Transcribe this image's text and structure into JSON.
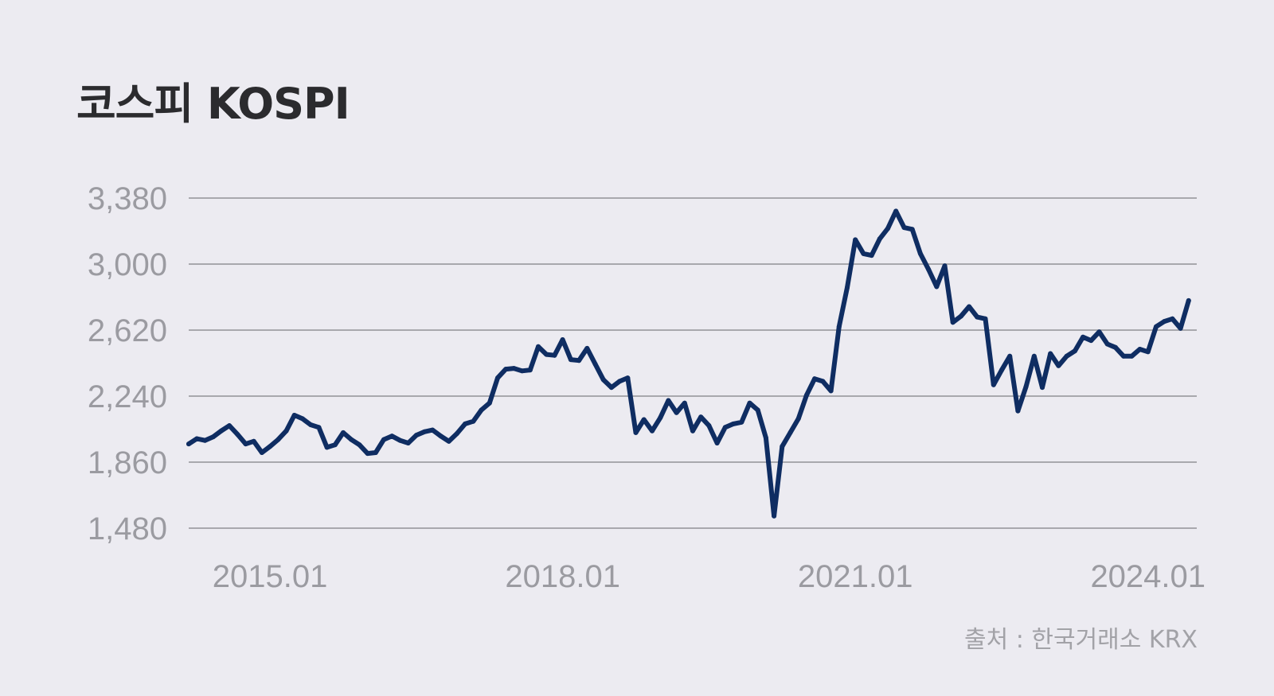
{
  "title": "코스피 KOSPI",
  "source": "출처 : 한국거래소 KRX",
  "colors": {
    "background": "#ecebf1",
    "line": "#0f2d62",
    "grid": "#a8a8ad",
    "tick_text": "#9b9ba1",
    "title_text": "#2b2b2e"
  },
  "chart_data": {
    "type": "line",
    "title": "코스피 KOSPI",
    "xlabel": "",
    "ylabel": "",
    "grid": true,
    "legend": "none",
    "x_ticks": [
      "2015.01",
      "2018.01",
      "2021.01",
      "2024.01"
    ],
    "y_ticks": [
      1480,
      1860,
      2240,
      2620,
      3000,
      3380
    ],
    "y_tick_labels": [
      "1,480",
      "1,860",
      "2,240",
      "2,620",
      "3,000",
      "3,380"
    ],
    "xlim": [
      "2014-03",
      "2024-07"
    ],
    "ylim": [
      1480,
      3380
    ],
    "series": [
      {
        "name": "",
        "x": [
          "2014-03",
          "2014-04",
          "2014-05",
          "2014-06",
          "2014-07",
          "2014-08",
          "2014-09",
          "2014-10",
          "2014-11",
          "2014-12",
          "2015-01",
          "2015-02",
          "2015-03",
          "2015-04",
          "2015-05",
          "2015-06",
          "2015-07",
          "2015-08",
          "2015-09",
          "2015-10",
          "2015-11",
          "2015-12",
          "2016-01",
          "2016-02",
          "2016-03",
          "2016-04",
          "2016-05",
          "2016-06",
          "2016-07",
          "2016-08",
          "2016-09",
          "2016-10",
          "2016-11",
          "2016-12",
          "2017-01",
          "2017-02",
          "2017-03",
          "2017-04",
          "2017-05",
          "2017-06",
          "2017-07",
          "2017-08",
          "2017-09",
          "2017-10",
          "2017-11",
          "2017-12",
          "2018-01",
          "2018-02",
          "2018-03",
          "2018-04",
          "2018-05",
          "2018-06",
          "2018-07",
          "2018-08",
          "2018-09",
          "2018-10",
          "2018-11",
          "2018-12",
          "2019-01",
          "2019-02",
          "2019-03",
          "2019-04",
          "2019-05",
          "2019-06",
          "2019-07",
          "2019-08",
          "2019-09",
          "2019-10",
          "2019-11",
          "2019-12",
          "2020-01",
          "2020-02",
          "2020-03",
          "2020-04",
          "2020-05",
          "2020-06",
          "2020-07",
          "2020-08",
          "2020-09",
          "2020-10",
          "2020-11",
          "2020-12",
          "2021-01",
          "2021-02",
          "2021-03",
          "2021-04",
          "2021-05",
          "2021-06",
          "2021-07",
          "2021-08",
          "2021-09",
          "2021-10",
          "2021-11",
          "2021-12",
          "2022-01",
          "2022-02",
          "2022-03",
          "2022-04",
          "2022-05",
          "2022-06",
          "2022-07",
          "2022-08",
          "2022-09",
          "2022-10",
          "2022-11",
          "2022-12",
          "2023-01",
          "2023-02",
          "2023-03",
          "2023-04",
          "2023-05",
          "2023-06",
          "2023-07",
          "2023-08",
          "2023-09",
          "2023-10",
          "2023-11",
          "2023-12",
          "2024-01",
          "2024-02",
          "2024-03",
          "2024-04",
          "2024-05",
          "2024-06"
        ],
        "values": [
          1965,
          1995,
          1985,
          2005,
          2040,
          2070,
          2020,
          1965,
          1980,
          1915,
          1950,
          1990,
          2040,
          2130,
          2110,
          2075,
          2060,
          1945,
          1960,
          2030,
          1990,
          1960,
          1910,
          1915,
          1990,
          2010,
          1985,
          1970,
          2015,
          2035,
          2045,
          2010,
          1980,
          2025,
          2080,
          2095,
          2160,
          2200,
          2345,
          2395,
          2400,
          2385,
          2390,
          2525,
          2480,
          2475,
          2565,
          2450,
          2445,
          2515,
          2425,
          2335,
          2290,
          2325,
          2345,
          2030,
          2105,
          2040,
          2115,
          2215,
          2145,
          2200,
          2040,
          2120,
          2070,
          1970,
          2060,
          2080,
          2090,
          2200,
          2160,
          2000,
          1550,
          1950,
          2030,
          2110,
          2245,
          2340,
          2325,
          2270,
          2640,
          2865,
          3140,
          3060,
          3050,
          3145,
          3205,
          3305,
          3210,
          3200,
          3060,
          2970,
          2870,
          2990,
          2665,
          2700,
          2755,
          2695,
          2685,
          2305,
          2390,
          2470,
          2155,
          2295,
          2470,
          2290,
          2485,
          2415,
          2470,
          2500,
          2580,
          2560,
          2610,
          2540,
          2520,
          2470,
          2470,
          2510,
          2495,
          2640,
          2670,
          2685,
          2630,
          2790
        ]
      }
    ]
  }
}
